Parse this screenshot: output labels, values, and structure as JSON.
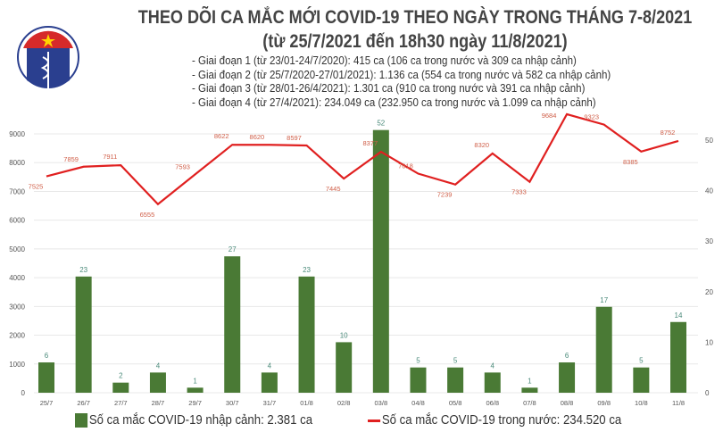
{
  "header": {
    "logo_text": "BỘ Y TẾ · MINISTRY OF HEALTH",
    "title": "THEO DÕI CA MẮC MỚI COVID-19 THEO NGÀY TRONG THÁNG 7-8/2021",
    "subtitle": "(từ 25/7/2021 đến 18h30 ngày 11/8/2021)",
    "stages": [
      "- Giai đoạn 1 (từ 23/01-24/7/2020): 415 ca (106 ca trong nước và 309 ca nhập cảnh)",
      "- Giai đoạn 2 (từ 25/7/2020-27/01/2021): 1.136 ca (554 ca trong nước và 582 ca nhập cảnh)",
      "- Giai đoạn 3 (từ 28/01-26/4/2021): 1.301 ca (910 ca trong nước và 391 ca nhập cảnh)",
      "- Giai đoạn 4 (từ 27/4/2021): 234.049 ca (232.950 ca trong nước và 1.099 ca nhập cảnh)"
    ]
  },
  "chart_data": {
    "type": "bar+line",
    "categories": [
      "25/7",
      "26/7",
      "27/7",
      "28/7",
      "29/7",
      "30/7",
      "31/7",
      "01/8",
      "02/8",
      "03/8",
      "04/8",
      "05/8",
      "06/8",
      "07/8",
      "08/8",
      "09/8",
      "10/8",
      "11/8"
    ],
    "series": [
      {
        "name": "Số ca mắc COVID-19 nhập cảnh: 2.381 ca",
        "type": "bar",
        "axis": "right",
        "color": "#4a7a35",
        "values": [
          6,
          23,
          2,
          4,
          1,
          27,
          4,
          23,
          10,
          52,
          5,
          5,
          4,
          1,
          6,
          17,
          5,
          14
        ]
      },
      {
        "name": "Số ca mắc COVID-19 trong nước: 234.520 ca",
        "type": "line",
        "axis": "left",
        "color": "#e02020",
        "values": [
          7525,
          7859,
          7911,
          6555,
          7593,
          8622,
          8620,
          8597,
          7445,
          8377,
          7618,
          7239,
          8320,
          7333,
          9684,
          9323,
          8385,
          8752
        ]
      }
    ],
    "left_axis": {
      "ylim": [
        0,
        9000
      ],
      "ticks": [
        0,
        1000,
        2000,
        3000,
        4000,
        5000,
        6000,
        7000,
        8000,
        9000
      ]
    },
    "right_axis": {
      "ylim": [
        0,
        52
      ],
      "ticks": [
        0,
        10,
        20,
        30,
        40,
        50
      ]
    },
    "grid": true,
    "legend": "bottom"
  }
}
